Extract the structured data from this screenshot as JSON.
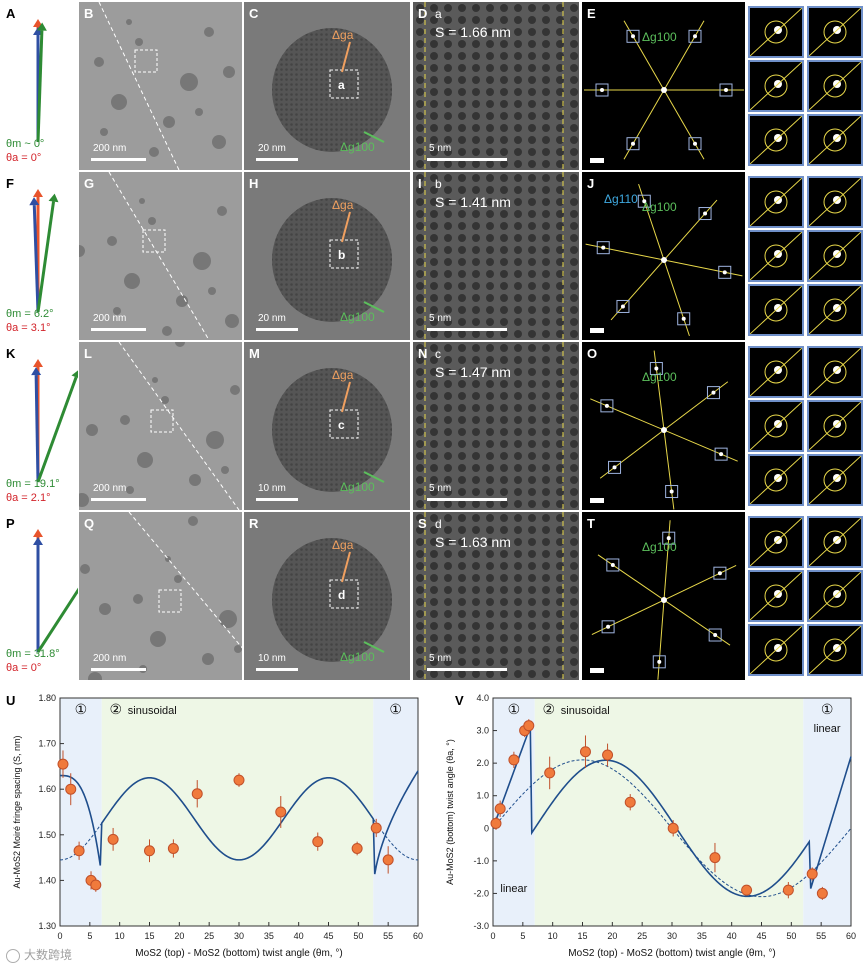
{
  "rows": [
    {
      "labels": {
        "vector": "A",
        "tem": "B",
        "hrtem": "C",
        "crop": "D",
        "fft": "E"
      },
      "theta_m": "θm ~ 0°",
      "theta_a": "θa = 0°",
      "tem_scale": "200 nm",
      "hrtem_scale": "20 nm",
      "crop_tag": "a",
      "s_value": "S = 1.66 nm",
      "crop_scale": "5 nm",
      "hrtem_region": "a",
      "dg_a": "Δga",
      "dg_100": "Δg100",
      "dg_110": ""
    },
    {
      "labels": {
        "vector": "F",
        "tem": "G",
        "hrtem": "H",
        "crop": "I",
        "fft": "J"
      },
      "theta_m": "θm = 6.2°",
      "theta_a": "θa = 3.1°",
      "tem_scale": "200 nm",
      "hrtem_scale": "20 nm",
      "crop_tag": "b",
      "s_value": "S = 1.41 nm",
      "crop_scale": "5 nm",
      "hrtem_region": "b",
      "dg_a": "Δga",
      "dg_100": "Δg100",
      "dg_110": "Δg110"
    },
    {
      "labels": {
        "vector": "K",
        "tem": "L",
        "hrtem": "M",
        "crop": "N",
        "fft": "O"
      },
      "theta_m": "θm = 19.1°",
      "theta_a": "θa = 2.1°",
      "tem_scale": "200 nm",
      "hrtem_scale": "10 nm",
      "crop_tag": "c",
      "s_value": "S = 1.47 nm",
      "crop_scale": "5 nm",
      "hrtem_region": "c",
      "dg_a": "Δga",
      "dg_100": "Δg100",
      "dg_110": ""
    },
    {
      "labels": {
        "vector": "P",
        "tem": "Q",
        "hrtem": "R",
        "crop": "S",
        "fft": "T"
      },
      "theta_m": "θm = 31.8°",
      "theta_a": "θa = 0°",
      "tem_scale": "200 nm",
      "hrtem_scale": "10 nm",
      "crop_tag": "d",
      "s_value": "S = 1.63 nm",
      "crop_scale": "5 nm",
      "hrtem_region": "d",
      "dg_a": "Δga",
      "dg_100": "Δg100",
      "dg_110": ""
    }
  ],
  "colors": {
    "top_arrow": "#e8542c",
    "bottom_arrow": "#2f4fa3",
    "moire_arrow": "#2e8b34",
    "theta_a_text": "#d2232a",
    "fit_line": "#1f4e8c",
    "marker": "#f07a3c",
    "regime1_bg": "#e8f0fa",
    "regime2_bg": "#eef7e6"
  },
  "chart_data": [
    {
      "panel": "U",
      "type": "scatter",
      "ylabel": "Au-MoS2 Moiré fringe spacing (S, nm)",
      "xlabel": "MoS2 (top) - MoS2 (bottom) twist angle (θm, °)",
      "xlim": [
        0,
        60
      ],
      "ylim": [
        1.3,
        1.8
      ],
      "xticks": [
        0,
        5,
        10,
        15,
        20,
        25,
        30,
        35,
        40,
        45,
        50,
        55,
        60
      ],
      "yticks": [
        1.3,
        1.4,
        1.5,
        1.6,
        1.7,
        1.8
      ],
      "regions": [
        {
          "marker": "①",
          "label": "",
          "x0": 0,
          "x1": 7
        },
        {
          "marker": "②",
          "label": "sinusoidal",
          "x0": 7,
          "x1": 52.5
        },
        {
          "marker": "①",
          "label": "",
          "x0": 52.5,
          "x1": 60
        }
      ],
      "points": [
        {
          "x": 0.5,
          "y": 1.655,
          "err": 0.03
        },
        {
          "x": 1.8,
          "y": 1.6,
          "err": 0.035
        },
        {
          "x": 3.2,
          "y": 1.465,
          "err": 0.02
        },
        {
          "x": 5.2,
          "y": 1.4,
          "err": 0.02
        },
        {
          "x": 6.0,
          "y": 1.39,
          "err": 0.015
        },
        {
          "x": 8.9,
          "y": 1.49,
          "err": 0.025
        },
        {
          "x": 15.0,
          "y": 1.465,
          "err": 0.025
        },
        {
          "x": 19.0,
          "y": 1.47,
          "err": 0.02
        },
        {
          "x": 23.0,
          "y": 1.59,
          "err": 0.03
        },
        {
          "x": 30.0,
          "y": 1.62,
          "err": 0.015
        },
        {
          "x": 37.0,
          "y": 1.55,
          "err": 0.035
        },
        {
          "x": 43.2,
          "y": 1.485,
          "err": 0.02
        },
        {
          "x": 49.8,
          "y": 1.47,
          "err": 0.015
        },
        {
          "x": 53.0,
          "y": 1.515,
          "err": 0.02
        },
        {
          "x": 55.0,
          "y": 1.445,
          "err": 0.03
        }
      ]
    },
    {
      "panel": "V",
      "type": "scatter",
      "ylabel": "Au-MoS2 (bottom) twist angle (θa, °)",
      "xlabel": "MoS2 (top) - MoS2 (bottom) twist angle (θm, °)",
      "xlim": [
        0,
        60
      ],
      "ylim": [
        -3.0,
        4.0
      ],
      "xticks": [
        0,
        5,
        10,
        15,
        20,
        25,
        30,
        35,
        40,
        45,
        50,
        55,
        60
      ],
      "yticks": [
        -3.0,
        -2.0,
        -1.0,
        0,
        1.0,
        2.0,
        3.0,
        4.0
      ],
      "regions": [
        {
          "marker": "①",
          "label": "linear",
          "x0": 0,
          "x1": 7
        },
        {
          "marker": "②",
          "label": "sinusoidal",
          "x0": 7,
          "x1": 52
        },
        {
          "marker": "①",
          "label": "linear",
          "x0": 52,
          "x1": 60
        }
      ],
      "points": [
        {
          "x": 0.5,
          "y": 0.15,
          "err": 0.2
        },
        {
          "x": 1.2,
          "y": 0.6,
          "err": 0.25
        },
        {
          "x": 3.5,
          "y": 2.1,
          "err": 0.25
        },
        {
          "x": 5.3,
          "y": 3.0,
          "err": 0.2
        },
        {
          "x": 6.0,
          "y": 3.15,
          "err": 0.2
        },
        {
          "x": 9.5,
          "y": 1.7,
          "err": 0.5
        },
        {
          "x": 15.5,
          "y": 2.35,
          "err": 0.5
        },
        {
          "x": 19.2,
          "y": 2.25,
          "err": 0.35
        },
        {
          "x": 23.0,
          "y": 0.8,
          "err": 0.25
        },
        {
          "x": 30.2,
          "y": 0.0,
          "err": 0.25
        },
        {
          "x": 37.2,
          "y": -0.9,
          "err": 0.45
        },
        {
          "x": 42.5,
          "y": -1.9,
          "err": 0.15
        },
        {
          "x": 49.5,
          "y": -1.9,
          "err": 0.25
        },
        {
          "x": 53.5,
          "y": -1.4,
          "err": 0.2
        },
        {
          "x": 55.2,
          "y": -2.0,
          "err": 0.2
        }
      ]
    }
  ],
  "watermark": "大数跨境"
}
